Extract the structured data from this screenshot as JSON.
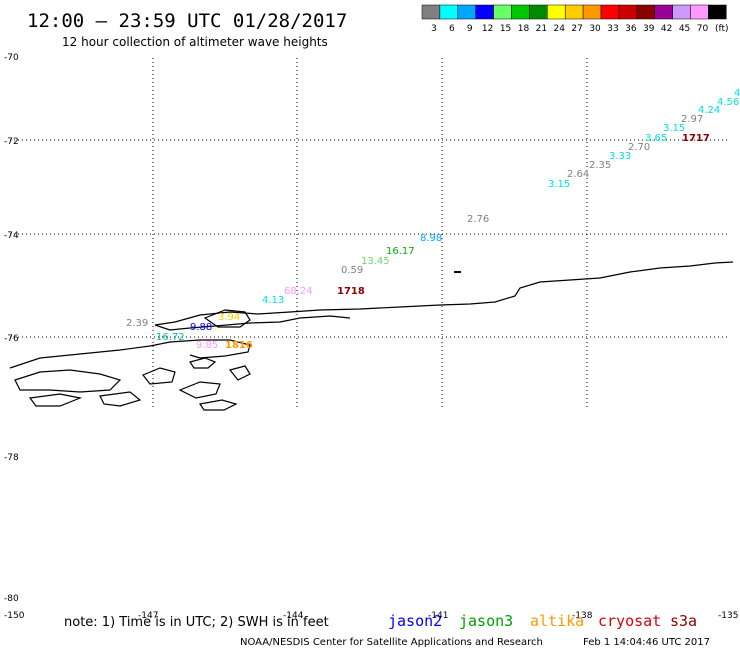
{
  "header": {
    "title": "12:00 – 23:59 UTC 01/28/2017",
    "subtitle": "12 hour collection of altimeter wave heights"
  },
  "legend": {
    "unit": "(ft)",
    "bins": [
      {
        "label": "3",
        "color": "#808080"
      },
      {
        "label": "6",
        "color": "#00ffff"
      },
      {
        "label": "9",
        "color": "#00a6ff"
      },
      {
        "label": "12",
        "color": "#0000ff"
      },
      {
        "label": "15",
        "color": "#66ff66"
      },
      {
        "label": "18",
        "color": "#00c800"
      },
      {
        "label": "21",
        "color": "#008c00"
      },
      {
        "label": "24",
        "color": "#ffff00"
      },
      {
        "label": "27",
        "color": "#ffcc00"
      },
      {
        "label": "30",
        "color": "#ff9900"
      },
      {
        "label": "33",
        "color": "#ff0000"
      },
      {
        "label": "36",
        "color": "#cc0000"
      },
      {
        "label": "39",
        "color": "#8b0000"
      },
      {
        "label": "42",
        "color": "#990099"
      },
      {
        "label": "45",
        "color": "#cc99ff"
      },
      {
        "label": "70",
        "color": "#ff99ff"
      },
      {
        "label": "",
        "color": "#000000"
      }
    ]
  },
  "axes": {
    "lat_labels": [
      "-70",
      "-72",
      "-74",
      "-76",
      "-78",
      "-80"
    ],
    "lon_labels": [
      "-150",
      "-147",
      "-144",
      "-141",
      "-138",
      "-135"
    ]
  },
  "observations": [
    {
      "text": "4",
      "color": "#00e0e0"
    },
    {
      "text": "4.56",
      "color": "#00e0e0"
    },
    {
      "text": "4.24",
      "color": "#00e0e0"
    },
    {
      "text": "2.97",
      "color": "#808080"
    },
    {
      "text": "3.15",
      "color": "#00e0e0"
    },
    {
      "text": "1717",
      "color": "#8b0000"
    },
    {
      "text": "3.65",
      "color": "#00e0e0"
    },
    {
      "text": "2.70",
      "color": "#808080"
    },
    {
      "text": "3.33",
      "color": "#00e0e0"
    },
    {
      "text": "2.35",
      "color": "#808080"
    },
    {
      "text": "2.64",
      "color": "#808080"
    },
    {
      "text": "3.15",
      "color": "#00e0e0"
    },
    {
      "text": "2.76",
      "color": "#808080"
    },
    {
      "text": "8.98",
      "color": "#00a6ff"
    },
    {
      "text": "16.17",
      "color": "#00b000"
    },
    {
      "text": "13.45",
      "color": "#66dd66"
    },
    {
      "text": "0.59",
      "color": "#808080"
    },
    {
      "text": "68.24",
      "color": "#ff99ff"
    },
    {
      "text": "1718",
      "color": "#8b0000"
    },
    {
      "text": "4.13",
      "color": "#00e0e0"
    },
    {
      "text": "2.39",
      "color": "#808080"
    },
    {
      "text": "3.94",
      "color": "#ffcc00"
    },
    {
      "text": "9.88",
      "color": "#0000ff"
    },
    {
      "text": "16.72",
      "color": "#00c0a0"
    },
    {
      "text": "9.85",
      "color": "#ff99ff"
    },
    {
      "text": "1816",
      "color": "#ff9900"
    }
  ],
  "footer": {
    "note": "note: 1) Time is in UTC; 2) SWH is in feet",
    "satellites": [
      {
        "name": "jason2",
        "color": "#0000ff"
      },
      {
        "name": "jason3",
        "color": "#00a000"
      },
      {
        "name": "altika",
        "color": "#ff9900"
      },
      {
        "name": "cryosat",
        "color": "#dd0000"
      },
      {
        "name": "s3a",
        "color": "#8b0000"
      }
    ],
    "credit": "NOAA/NESDIS Center for Satellite Applications and Research",
    "timestamp": "Feb  1 14:04:46 UTC 2017"
  }
}
